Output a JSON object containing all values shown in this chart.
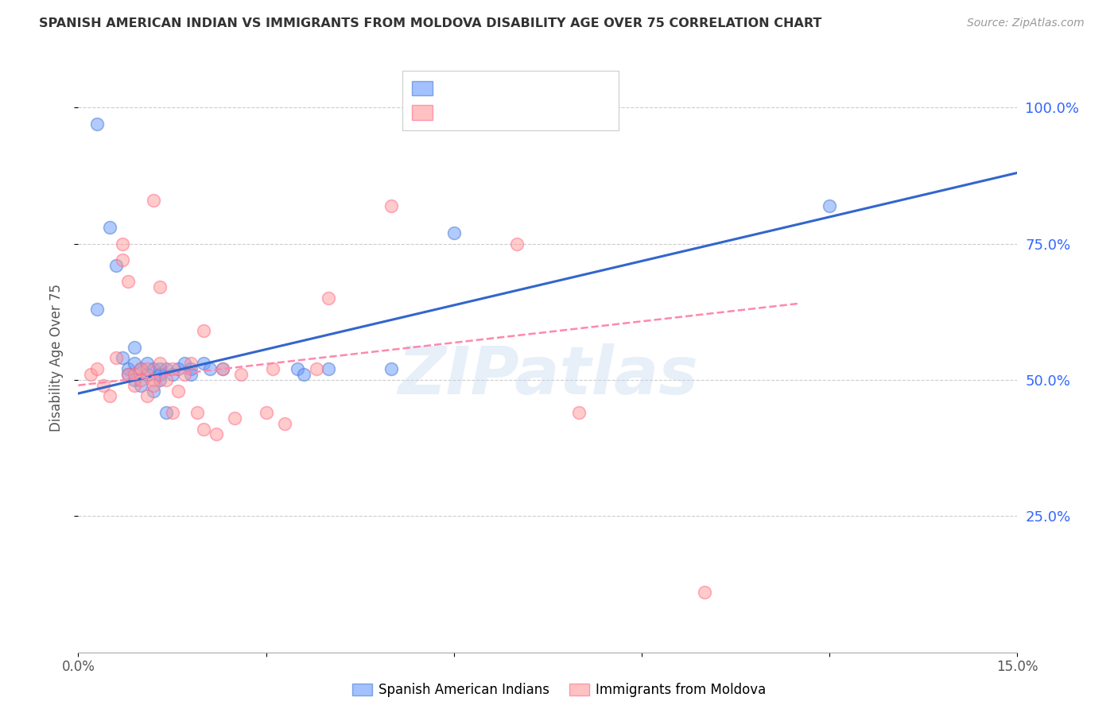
{
  "title": "SPANISH AMERICAN INDIAN VS IMMIGRANTS FROM MOLDOVA DISABILITY AGE OVER 75 CORRELATION CHART",
  "source": "Source: ZipAtlas.com",
  "ylabel": "Disability Age Over 75",
  "right_yticks": [
    "100.0%",
    "75.0%",
    "50.0%",
    "25.0%"
  ],
  "right_ytick_vals": [
    1.0,
    0.75,
    0.5,
    0.25
  ],
  "xlim": [
    0.0,
    0.15
  ],
  "ylim": [
    0.0,
    1.08
  ],
  "legend_label_blue": "Spanish American Indians",
  "legend_label_pink": "Immigrants from Moldova",
  "blue_scatter_x": [
    0.003,
    0.005,
    0.006,
    0.007,
    0.008,
    0.008,
    0.009,
    0.009,
    0.009,
    0.01,
    0.01,
    0.011,
    0.011,
    0.012,
    0.012,
    0.013,
    0.013,
    0.013,
    0.014,
    0.014,
    0.015,
    0.016,
    0.017,
    0.018,
    0.018,
    0.02,
    0.021,
    0.023,
    0.035,
    0.036,
    0.04,
    0.05,
    0.06,
    0.12,
    0.003
  ],
  "blue_scatter_y": [
    0.63,
    0.78,
    0.71,
    0.54,
    0.52,
    0.51,
    0.56,
    0.53,
    0.5,
    0.52,
    0.49,
    0.51,
    0.53,
    0.52,
    0.48,
    0.52,
    0.51,
    0.5,
    0.52,
    0.44,
    0.51,
    0.52,
    0.53,
    0.52,
    0.51,
    0.53,
    0.52,
    0.52,
    0.52,
    0.51,
    0.52,
    0.52,
    0.77,
    0.82,
    0.97
  ],
  "pink_scatter_x": [
    0.002,
    0.003,
    0.004,
    0.005,
    0.006,
    0.007,
    0.007,
    0.008,
    0.008,
    0.009,
    0.009,
    0.01,
    0.01,
    0.011,
    0.011,
    0.012,
    0.012,
    0.013,
    0.013,
    0.014,
    0.015,
    0.015,
    0.016,
    0.017,
    0.018,
    0.019,
    0.02,
    0.022,
    0.023,
    0.025,
    0.026,
    0.03,
    0.031,
    0.033,
    0.038,
    0.04,
    0.05,
    0.07,
    0.08,
    0.1,
    0.012,
    0.02
  ],
  "pink_scatter_y": [
    0.51,
    0.52,
    0.49,
    0.47,
    0.54,
    0.75,
    0.72,
    0.51,
    0.68,
    0.51,
    0.49,
    0.52,
    0.5,
    0.52,
    0.47,
    0.5,
    0.49,
    0.67,
    0.53,
    0.5,
    0.52,
    0.44,
    0.48,
    0.51,
    0.53,
    0.44,
    0.41,
    0.4,
    0.52,
    0.43,
    0.51,
    0.44,
    0.52,
    0.42,
    0.52,
    0.65,
    0.82,
    0.75,
    0.44,
    0.11,
    0.83,
    0.59
  ],
  "blue_line_x": [
    0.0,
    0.15
  ],
  "blue_line_y": [
    0.475,
    0.88
  ],
  "pink_line_x": [
    0.0,
    0.115
  ],
  "pink_line_y": [
    0.49,
    0.64
  ],
  "watermark": "ZIPatlas",
  "background_color": "#ffffff",
  "blue_color": "#6699ff",
  "pink_color": "#ff9999",
  "blue_edge_color": "#4477cc",
  "pink_edge_color": "#ff6688",
  "blue_line_color": "#3366cc",
  "pink_line_color": "#ff88aa",
  "right_axis_color": "#3366ff",
  "grid_color": "#cccccc",
  "title_color": "#333333",
  "source_color": "#999999",
  "ylabel_color": "#555555",
  "xtick_color": "#555555"
}
